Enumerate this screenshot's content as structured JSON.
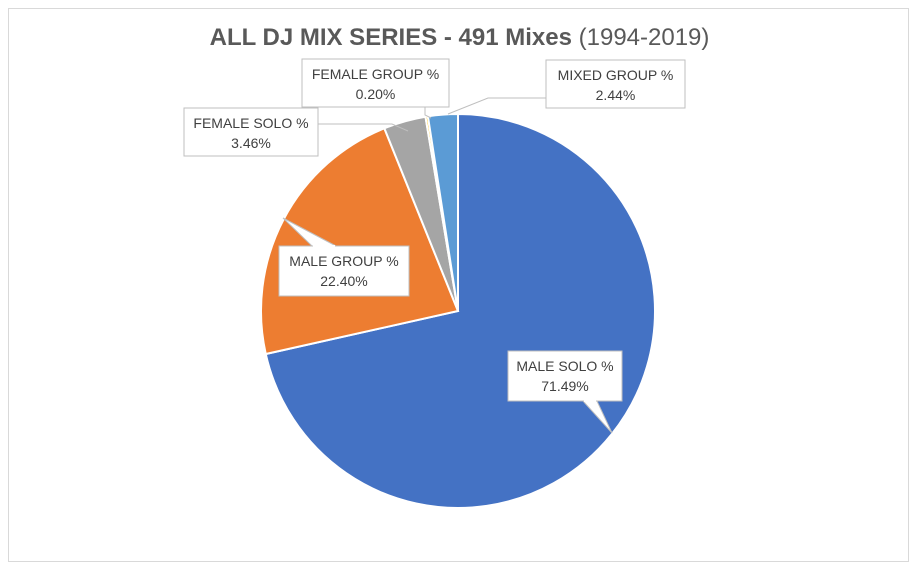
{
  "chart_data": {
    "type": "pie",
    "title": "ALL DJ MIX SERIES - 491 Mixes",
    "subtitle": "(1994-2019)",
    "slices": [
      {
        "label": "MALE SOLO %",
        "value": 71.49,
        "display": "71.49%",
        "color": "#4472C4"
      },
      {
        "label": "MALE GROUP %",
        "value": 22.4,
        "display": "22.40%",
        "color": "#ED7D31"
      },
      {
        "label": "FEMALE SOLO %",
        "value": 3.46,
        "display": "3.46%",
        "color": "#A5A5A5"
      },
      {
        "label": "FEMALE GROUP %",
        "value": 0.2,
        "display": "0.20%",
        "color": "#FFC000"
      },
      {
        "label": "MIXED GROUP %",
        "value": 2.44,
        "display": "2.44%",
        "color": "#5B9BD5"
      }
    ]
  }
}
